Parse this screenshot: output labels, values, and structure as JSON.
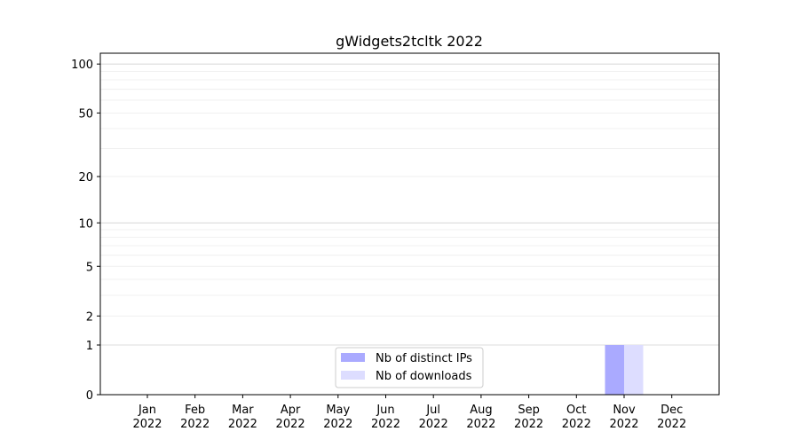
{
  "chart_data": {
    "type": "bar",
    "title": "gWidgets2tcltk 2022",
    "xlabel": "",
    "ylabel": "",
    "yscale": "log10(1+y)",
    "ylim": [
      0,
      116
    ],
    "grid": true,
    "legend_placement": "lower-center",
    "categories": [
      "Jan\n2022",
      "Feb\n2022",
      "Mar\n2022",
      "Apr\n2022",
      "May\n2022",
      "Jun\n2022",
      "Jul\n2022",
      "Aug\n2022",
      "Sep\n2022",
      "Oct\n2022",
      "Nov\n2022",
      "Dec\n2022"
    ],
    "yticks": [
      0,
      1,
      2,
      5,
      10,
      20,
      50,
      100
    ],
    "series": [
      {
        "name": "Nb of distinct IPs",
        "color": "#aaaaff",
        "values": [
          0,
          0,
          0,
          0,
          0,
          0,
          0,
          0,
          0,
          0,
          1,
          0
        ]
      },
      {
        "name": "Nb of downloads",
        "color": "#ddddff",
        "values": [
          0,
          0,
          0,
          0,
          0,
          0,
          0,
          0,
          0,
          0,
          1,
          0
        ]
      }
    ]
  }
}
